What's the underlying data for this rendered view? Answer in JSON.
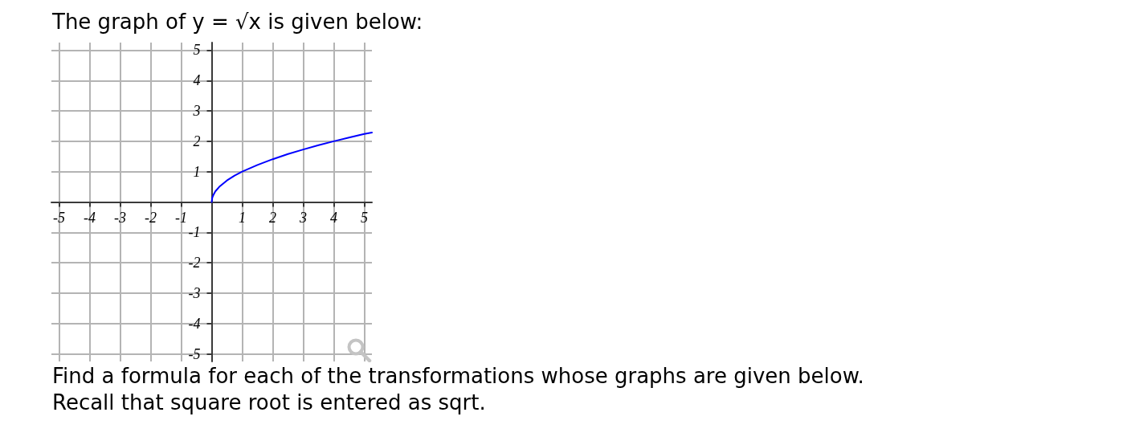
{
  "chart_data": {
    "type": "line",
    "title": "The graph of y = √x is given below:",
    "x": [
      0,
      0.02,
      0.06,
      0.12,
      0.25,
      0.5,
      0.75,
      1,
      1.5,
      2,
      2.5,
      3,
      3.5,
      4,
      4.5,
      5,
      5.25
    ],
    "values": [
      0,
      0.14,
      0.24,
      0.35,
      0.5,
      0.71,
      0.87,
      1,
      1.22,
      1.41,
      1.58,
      1.73,
      1.87,
      2,
      2.12,
      2.24,
      2.29
    ],
    "color": "#0000ff",
    "marker": "none",
    "line_style": "solid",
    "grid": true,
    "xlim": [
      -5.25,
      5.25
    ],
    "ylim": [
      -5.25,
      5.25
    ],
    "xticks": [
      -5,
      -4,
      -3,
      -2,
      -1,
      1,
      2,
      3,
      4,
      5
    ],
    "yticks": [
      -5,
      -4,
      -3,
      -2,
      -1,
      1,
      2,
      3,
      4,
      5
    ],
    "annotations": [
      "Find a formula for each of the transformations whose graphs are given below.",
      "Recall that square root is entered as sqrt."
    ]
  }
}
